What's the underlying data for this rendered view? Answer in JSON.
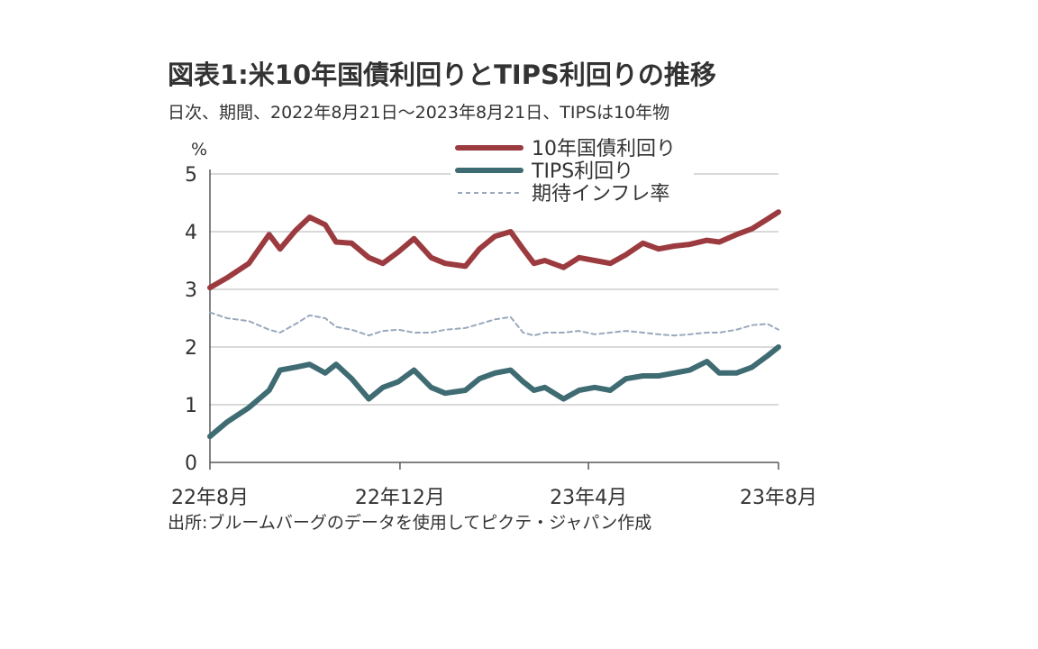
{
  "title": "図表1:米10年国債利回りとTIPS利回りの推移",
  "subtitle": "日次、期間、2022年8月21日〜2023年8月21日、TIPSは10年物",
  "source": "出所:ブルームバーグのデータを使用してピクテ・ジャパン作成",
  "chart_data": {
    "type": "line",
    "title": "図表1:米10年国債利回りとTIPS利回りの推移",
    "ylabel": "%",
    "xlabel": "",
    "ylim": [
      0,
      5
    ],
    "y_ticks": [
      0,
      1,
      2,
      3,
      4,
      5
    ],
    "x_range": [
      "2022-08-21",
      "2023-08-21"
    ],
    "x_ticks": [
      {
        "label": "22年8月",
        "date": "2022-08-21"
      },
      {
        "label": "22年12月",
        "date": "2022-12-21"
      },
      {
        "label": "23年4月",
        "date": "2023-04-21"
      },
      {
        "label": "23年8月",
        "date": "2023-08-21"
      }
    ],
    "grid": true,
    "legend_position": "top-right",
    "x": [
      "2022-08-21",
      "2022-09-01",
      "2022-09-15",
      "2022-09-28",
      "2022-10-05",
      "2022-10-15",
      "2022-10-24",
      "2022-11-03",
      "2022-11-10",
      "2022-11-20",
      "2022-12-01",
      "2022-12-10",
      "2022-12-20",
      "2022-12-30",
      "2023-01-10",
      "2023-01-19",
      "2023-02-01",
      "2023-02-10",
      "2023-02-20",
      "2023-03-02",
      "2023-03-10",
      "2023-03-17",
      "2023-03-24",
      "2023-04-05",
      "2023-04-15",
      "2023-04-25",
      "2023-05-05",
      "2023-05-15",
      "2023-05-26",
      "2023-06-05",
      "2023-06-15",
      "2023-06-25",
      "2023-07-06",
      "2023-07-14",
      "2023-07-25",
      "2023-08-04",
      "2023-08-14",
      "2023-08-21"
    ],
    "series": [
      {
        "name": "10年国債利回り",
        "color": "#9b3b3f",
        "style": "solid",
        "values": [
          3.03,
          3.2,
          3.45,
          3.95,
          3.7,
          4.02,
          4.25,
          4.12,
          3.82,
          3.8,
          3.55,
          3.45,
          3.65,
          3.88,
          3.55,
          3.45,
          3.4,
          3.7,
          3.92,
          4.0,
          3.7,
          3.45,
          3.5,
          3.38,
          3.55,
          3.5,
          3.45,
          3.6,
          3.8,
          3.7,
          3.75,
          3.78,
          3.85,
          3.82,
          3.95,
          4.05,
          4.22,
          4.34
        ]
      },
      {
        "name": "TIPS利回り",
        "color": "#3f6b73",
        "style": "solid",
        "values": [
          0.45,
          0.7,
          0.95,
          1.25,
          1.6,
          1.65,
          1.7,
          1.55,
          1.7,
          1.45,
          1.1,
          1.3,
          1.4,
          1.6,
          1.3,
          1.2,
          1.25,
          1.45,
          1.55,
          1.6,
          1.4,
          1.25,
          1.3,
          1.1,
          1.25,
          1.3,
          1.25,
          1.45,
          1.5,
          1.5,
          1.55,
          1.6,
          1.75,
          1.55,
          1.55,
          1.65,
          1.85,
          2.0
        ]
      },
      {
        "name": "期待インフレ率",
        "color": "#9aa8bd",
        "style": "dashed",
        "values": [
          2.6,
          2.5,
          2.45,
          2.3,
          2.25,
          2.4,
          2.55,
          2.5,
          2.35,
          2.3,
          2.2,
          2.28,
          2.3,
          2.25,
          2.25,
          2.3,
          2.33,
          2.4,
          2.48,
          2.52,
          2.25,
          2.2,
          2.25,
          2.25,
          2.28,
          2.22,
          2.25,
          2.28,
          2.25,
          2.22,
          2.2,
          2.22,
          2.25,
          2.25,
          2.3,
          2.38,
          2.4,
          2.3
        ]
      }
    ]
  }
}
